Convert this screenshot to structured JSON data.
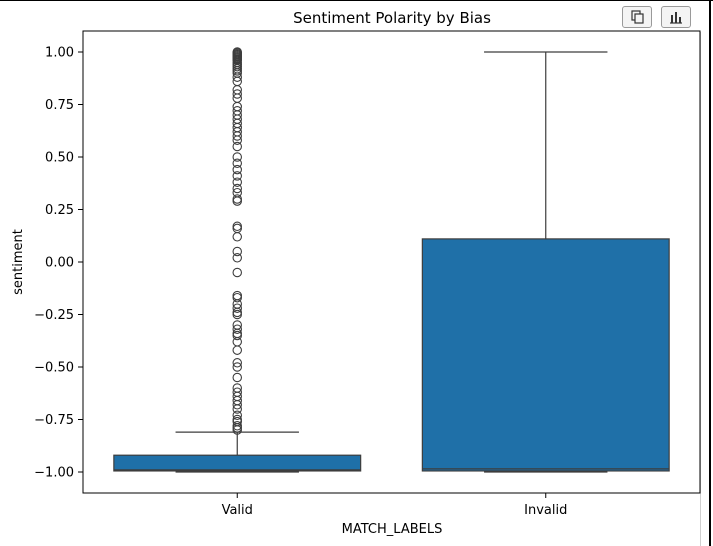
{
  "toolbar": {
    "copy_icon": "copy-icon",
    "chart_icon": "bar-chart-icon"
  },
  "chart_data": {
    "type": "box",
    "title": "Sentiment Polarity by Bias",
    "xlabel": "MATCH_LABELS",
    "ylabel": "sentiment",
    "categories": [
      "Valid",
      "Invalid"
    ],
    "ylim": [
      -1.1,
      1.1
    ],
    "yticks": [
      1.0,
      0.75,
      0.5,
      0.25,
      0.0,
      -0.25,
      -0.5,
      -0.75,
      -1.0
    ],
    "ytick_labels": [
      "1.00",
      "0.75",
      "0.50",
      "0.25",
      "0.00",
      "−0.25",
      "−0.50",
      "−0.75",
      "−1.00"
    ],
    "grid": false,
    "box_color": "#1f70a8",
    "boxes": [
      {
        "category": "Valid",
        "whisker_low": -1.0,
        "q1": -0.995,
        "median": -0.99,
        "q3": -0.92,
        "whisker_high": -0.81,
        "outliers": [
          1.0,
          0.995,
          0.99,
          0.985,
          0.98,
          0.975,
          0.97,
          0.965,
          0.96,
          0.95,
          0.94,
          0.93,
          0.92,
          0.91,
          0.9,
          0.88,
          0.86,
          0.82,
          0.8,
          0.78,
          0.74,
          0.72,
          0.7,
          0.68,
          0.66,
          0.64,
          0.62,
          0.6,
          0.58,
          0.55,
          0.5,
          0.47,
          0.44,
          0.41,
          0.38,
          0.35,
          0.33,
          0.3,
          0.29,
          0.17,
          0.16,
          0.12,
          0.05,
          0.02,
          -0.05,
          -0.16,
          -0.17,
          -0.2,
          -0.22,
          -0.24,
          -0.25,
          -0.3,
          -0.32,
          -0.34,
          -0.35,
          -0.38,
          -0.42,
          -0.48,
          -0.5,
          -0.55,
          -0.6,
          -0.62,
          -0.64,
          -0.66,
          -0.68,
          -0.7,
          -0.73,
          -0.75,
          -0.76,
          -0.78,
          -0.79,
          -0.8
        ]
      },
      {
        "category": "Invalid",
        "whisker_low": -1.0,
        "q1": -0.995,
        "median": -0.985,
        "q3": 0.11,
        "whisker_high": 1.0,
        "outliers": []
      }
    ]
  }
}
